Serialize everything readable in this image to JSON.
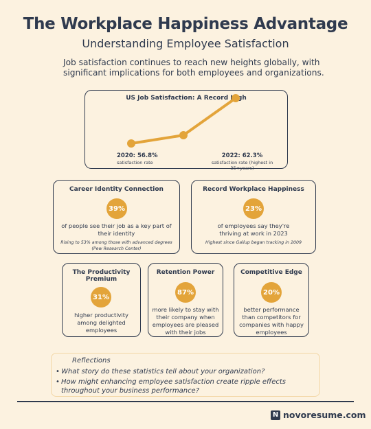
{
  "header": {
    "title": "The Workplace Happiness Advantage",
    "subtitle": "Understanding Employee Satisfaction",
    "intro": "Job satisfaction continues to reach new heights globally, with significant implications for both employees and organizations."
  },
  "chart_data": {
    "type": "line",
    "title": "US Job Satisfaction: A Record High",
    "color": "#e3a43a",
    "values": [
      56.8,
      57.8,
      62.3
    ],
    "annotations": [
      {
        "text": "2020: 56.8%",
        "note": "satisfaction rate"
      },
      {
        "text": "2022: 62.3%",
        "note": "satisfaction rate (highest in 35+years)"
      }
    ]
  },
  "cards": [
    {
      "title": "Career Identity Connection",
      "stat": "39%",
      "text": "of people see their job as a  key part of their identity",
      "note": "Rising to 53% among those with advanced degrees (Pew Research Center)"
    },
    {
      "title": "Record Workplace Happiness",
      "stat": "23%",
      "text": "of employees say they're thriving at work in 2023",
      "note": "Highest since Gallup began tracking in 2009"
    },
    {
      "title": "The Productivity Premium",
      "stat": "31%",
      "text": "higher productivity among delighted employees"
    },
    {
      "title": "Retention Power",
      "stat": "87%",
      "text": "more likely to stay with their company when employees are pleased with their jobs"
    },
    {
      "title": "Competitive Edge",
      "stat": "20%",
      "text": "better performance than competitors for companies with happy employees"
    }
  ],
  "reflections": {
    "title": "Reflections",
    "items": [
      "What story do these statistics tell about your organization?",
      "How might enhancing employee satisfaction create ripple effects throughout your business performance?"
    ]
  },
  "footer": {
    "brand": "novoresume.com"
  }
}
